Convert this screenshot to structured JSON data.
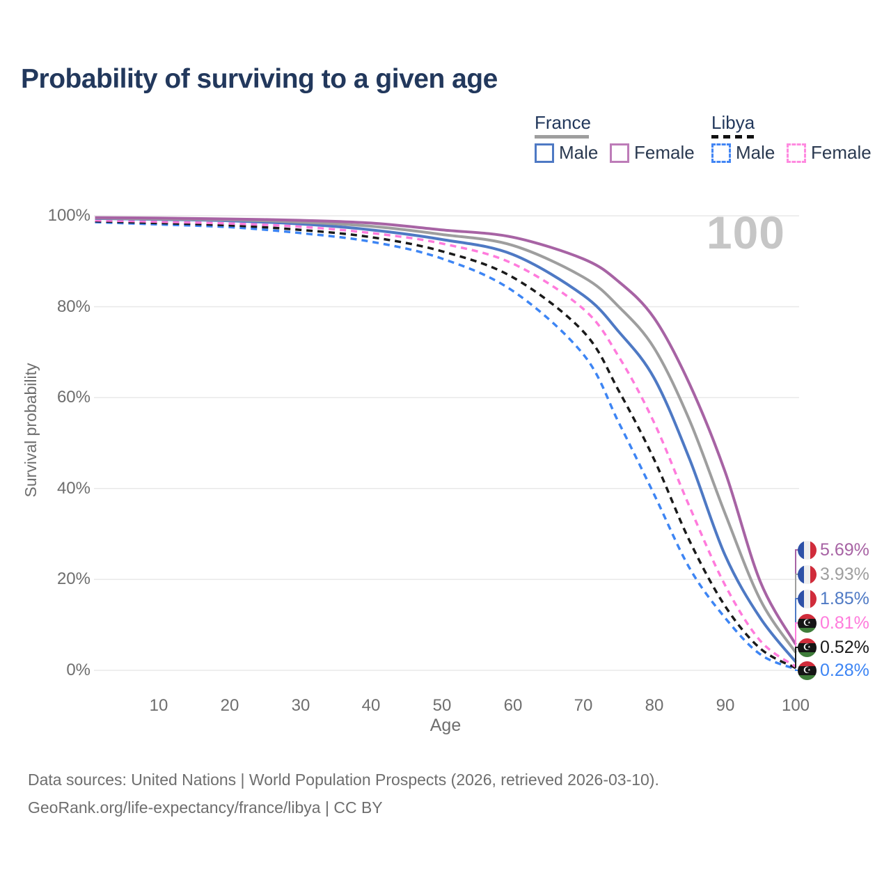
{
  "header": {
    "title": "Probability of surviving to a given age"
  },
  "watermark": "100",
  "icons": {
    "crescent_star": "☪"
  },
  "legend": {
    "groups": [
      {
        "country": "France",
        "line_style": "solid",
        "underline_color": "#9e9e9e",
        "items": [
          {
            "label": "Male",
            "swatch_color": "#4e79c4"
          },
          {
            "label": "Female",
            "swatch_color": "#bd7cb8"
          }
        ]
      },
      {
        "country": "Libya",
        "line_style": "dashed",
        "underline_color": "#111111",
        "items": [
          {
            "label": "Male",
            "swatch_color": "#4285f4"
          },
          {
            "label": "Female",
            "swatch_color": "#ff8ae0"
          }
        ]
      }
    ]
  },
  "chart_data": {
    "type": "line",
    "title": "Probability of surviving to a given age",
    "xlabel": "Age",
    "ylabel": "Survival probability",
    "xlim": [
      0,
      100
    ],
    "ylim": [
      0,
      100
    ],
    "grid": "horizontal",
    "x_tick_labels": [
      "10",
      "20",
      "30",
      "40",
      "50",
      "60",
      "70",
      "80",
      "90",
      "100"
    ],
    "x_tick_values": [
      10,
      20,
      30,
      40,
      50,
      60,
      70,
      80,
      90,
      100
    ],
    "y_tick_labels": [
      "100%",
      "80%",
      "60%",
      "40%",
      "20%",
      "0%"
    ],
    "y_tick_values": [
      100,
      80,
      60,
      40,
      20,
      0
    ],
    "x": [
      1,
      10,
      20,
      30,
      40,
      50,
      60,
      70,
      75,
      80,
      85,
      90,
      95,
      100
    ],
    "series": [
      {
        "name": "France Female",
        "country": "France",
        "sex": "Female",
        "style": "solid",
        "color": "#a763a4",
        "values": [
          99.6,
          99.5,
          99.3,
          99.0,
          98.4,
          96.9,
          95.3,
          90.5,
          85.5,
          77.5,
          63.0,
          43.8,
          19.5,
          5.69
        ],
        "end_label": "5.69%"
      },
      {
        "name": "France Both sexes",
        "country": "France",
        "sex": "Both sexes",
        "style": "solid",
        "color": "#9e9e9e",
        "values": [
          99.5,
          99.3,
          99.1,
          98.6,
          97.7,
          95.9,
          93.5,
          86.5,
          80.0,
          70.9,
          55.0,
          34.6,
          15.5,
          3.93
        ],
        "end_label": "3.93%"
      },
      {
        "name": "France Male",
        "country": "France",
        "sex": "Male",
        "style": "solid",
        "color": "#4e79c4",
        "values": [
          99.4,
          99.2,
          98.9,
          98.2,
          96.9,
          94.8,
          91.5,
          82.5,
          74.5,
          64.3,
          46.5,
          25.4,
          11.5,
          1.85
        ],
        "end_label": "1.85%"
      },
      {
        "name": "Libya Female",
        "country": "Libya",
        "sex": "Female",
        "style": "dashed",
        "color": "#ff7bdc",
        "values": [
          99.0,
          98.7,
          98.3,
          97.6,
          96.2,
          93.9,
          89.5,
          79.5,
          69.0,
          54.5,
          36.0,
          18.8,
          6.5,
          0.81
        ],
        "end_label": "0.81%"
      },
      {
        "name": "Libya Both sexes",
        "country": "Libya",
        "sex": "Both sexes",
        "style": "dashed",
        "color": "#1a1a1a",
        "values": [
          98.8,
          98.4,
          97.9,
          96.9,
          95.3,
          92.2,
          86.5,
          74.5,
          61.5,
          46.4,
          28.5,
          14.2,
          4.8,
          0.52
        ],
        "end_label": "0.52%"
      },
      {
        "name": "Libya Male",
        "country": "Libya",
        "sex": "Male",
        "style": "dashed",
        "color": "#3d85f4",
        "values": [
          98.6,
          98.1,
          97.5,
          96.2,
          94.3,
          90.6,
          83.5,
          69.5,
          54.5,
          38.7,
          22.5,
          11.6,
          3.5,
          0.28
        ],
        "end_label": "0.28%"
      }
    ]
  },
  "footer": {
    "line1": "Data sources: United Nations | World Population Prospects (2026, retrieved 2026-03-10).",
    "line2": "GeoRank.org/life-expectancy/france/libya | CC BY"
  }
}
